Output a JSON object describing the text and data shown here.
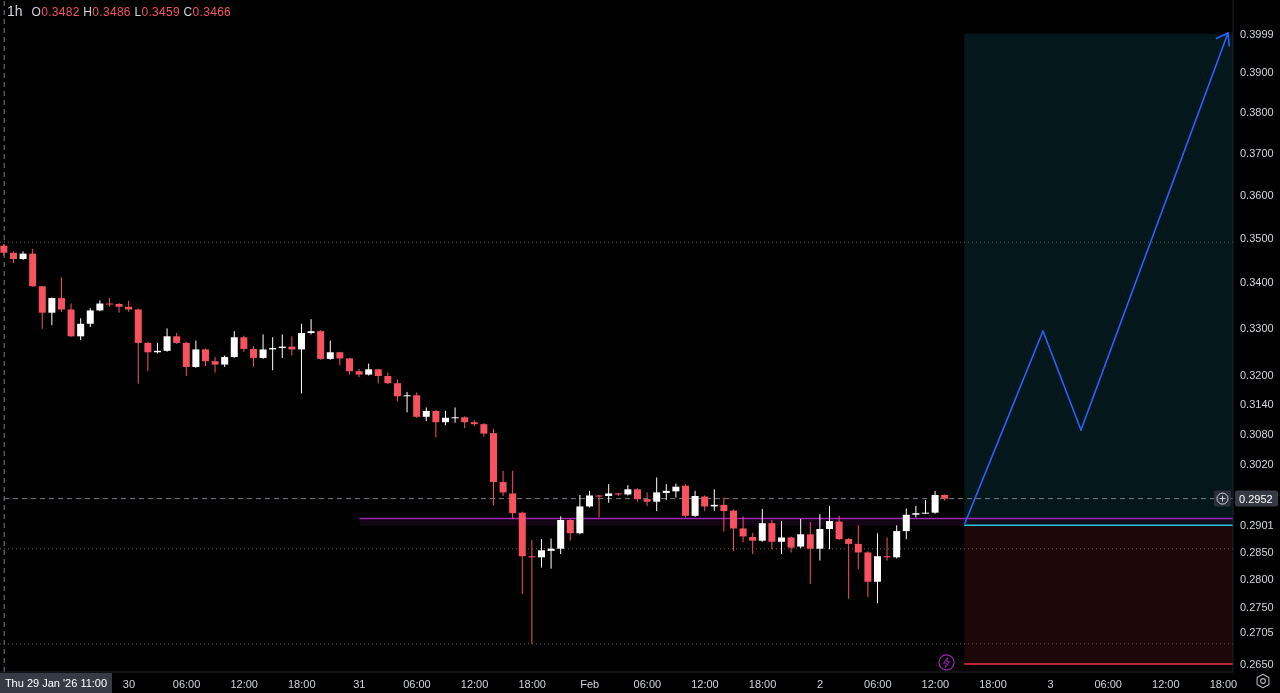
{
  "chart_data": {
    "type": "candlestick",
    "title": "1h",
    "subtitle": "O0.3482 H0.3486 L0.3459 C0.3466",
    "series": [
      {
        "x": [
          "2026-01-29T11:00",
          "2026-01-29T12:00",
          "2026-01-29T13:00",
          "2026-01-29T14:00",
          "2026-01-29T15:00",
          "2026-01-29T16:00",
          "2026-01-29T17:00",
          "2026-01-29T18:00",
          "2026-01-29T19:00",
          "2026-01-29T20:00",
          "2026-01-29T21:00",
          "2026-01-29T22:00",
          "2026-01-29T23:00",
          "2026-01-30T00:00",
          "2026-01-30T01:00",
          "2026-01-30T02:00",
          "2026-01-30T03:00",
          "2026-01-30T04:00",
          "2026-01-30T05:00",
          "2026-01-30T06:00",
          "2026-01-30T07:00",
          "2026-01-30T08:00",
          "2026-01-30T09:00",
          "2026-01-30T10:00",
          "2026-01-30T11:00",
          "2026-01-30T12:00",
          "2026-01-30T13:00",
          "2026-01-30T14:00",
          "2026-01-30T15:00",
          "2026-01-30T16:00",
          "2026-01-30T17:00",
          "2026-01-30T18:00",
          "2026-01-30T19:00",
          "2026-01-30T20:00",
          "2026-01-30T21:00",
          "2026-01-30T22:00",
          "2026-01-30T23:00",
          "2026-01-31T00:00",
          "2026-01-31T01:00",
          "2026-01-31T02:00",
          "2026-01-31T03:00",
          "2026-01-31T04:00",
          "2026-01-31T05:00",
          "2026-01-31T06:00",
          "2026-01-31T07:00",
          "2026-01-31T08:00",
          "2026-01-31T09:00",
          "2026-01-31T10:00",
          "2026-01-31T11:00",
          "2026-01-31T12:00",
          "2026-01-31T13:00",
          "2026-01-31T14:00",
          "2026-01-31T15:00",
          "2026-01-31T16:00",
          "2026-01-31T17:00",
          "2026-01-31T18:00",
          "2026-01-31T19:00",
          "2026-01-31T20:00",
          "2026-01-31T21:00",
          "2026-01-31T22:00",
          "2026-01-31T23:00",
          "2026-02-01T00:00",
          "2026-02-01T01:00",
          "2026-02-01T02:00",
          "2026-02-01T03:00",
          "2026-02-01T04:00",
          "2026-02-01T05:00",
          "2026-02-01T06:00",
          "2026-02-01T07:00",
          "2026-02-01T08:00",
          "2026-02-01T09:00",
          "2026-02-01T10:00",
          "2026-02-01T11:00",
          "2026-02-01T12:00",
          "2026-02-01T13:00",
          "2026-02-01T14:00",
          "2026-02-01T15:00",
          "2026-02-01T16:00",
          "2026-02-01T17:00",
          "2026-02-01T18:00",
          "2026-02-01T19:00",
          "2026-02-01T20:00",
          "2026-02-01T21:00",
          "2026-02-01T22:00",
          "2026-02-01T23:00",
          "2026-02-02T00:00",
          "2026-02-02T01:00",
          "2026-02-02T02:00",
          "2026-02-02T03:00",
          "2026-02-02T04:00",
          "2026-02-02T05:00",
          "2026-02-02T06:00",
          "2026-02-02T07:00",
          "2026-02-02T08:00",
          "2026-02-02T09:00",
          "2026-02-02T10:00",
          "2026-02-02T11:00",
          "2026-02-02T12:00",
          "2026-02-02T13:00"
        ],
        "ohlc": [
          [
            0.3482,
            0.3486,
            0.3459,
            0.3466
          ],
          [
            0.3466,
            0.3469,
            0.3443,
            0.3452
          ],
          [
            0.3452,
            0.3469,
            0.345,
            0.3464
          ],
          [
            0.3464,
            0.3475,
            0.339,
            0.3391
          ],
          [
            0.3391,
            0.3392,
            0.3298,
            0.3333
          ],
          [
            0.3333,
            0.3366,
            0.3306,
            0.3365
          ],
          [
            0.3365,
            0.3411,
            0.3335,
            0.334
          ],
          [
            0.334,
            0.3353,
            0.3281,
            0.3282
          ],
          [
            0.3282,
            0.3321,
            0.3274,
            0.3309
          ],
          [
            0.3309,
            0.3343,
            0.3302,
            0.3338
          ],
          [
            0.3338,
            0.336,
            0.3336,
            0.3353
          ],
          [
            0.3353,
            0.3365,
            0.3346,
            0.3351
          ],
          [
            0.3352,
            0.3354,
            0.3333,
            0.3346
          ],
          [
            0.3346,
            0.3359,
            0.3335,
            0.334
          ],
          [
            0.334,
            0.3342,
            0.3182,
            0.3268
          ],
          [
            0.3268,
            0.327,
            0.3208,
            0.3248
          ],
          [
            0.3248,
            0.3268,
            0.3245,
            0.3251
          ],
          [
            0.3251,
            0.3299,
            0.3249,
            0.3282
          ],
          [
            0.3282,
            0.3289,
            0.3266,
            0.3268
          ],
          [
            0.3268,
            0.327,
            0.3198,
            0.3217
          ],
          [
            0.3217,
            0.3273,
            0.3215,
            0.3254
          ],
          [
            0.3254,
            0.3256,
            0.3219,
            0.3229
          ],
          [
            0.3229,
            0.3238,
            0.3205,
            0.3222
          ],
          [
            0.3222,
            0.3241,
            0.3217,
            0.3238
          ],
          [
            0.3238,
            0.3293,
            0.3236,
            0.328
          ],
          [
            0.328,
            0.3283,
            0.3249,
            0.3255
          ],
          [
            0.3255,
            0.3261,
            0.3217,
            0.3236
          ],
          [
            0.3236,
            0.3286,
            0.3234,
            0.3254
          ],
          [
            0.3254,
            0.328,
            0.321,
            0.3257
          ],
          [
            0.3257,
            0.3286,
            0.3236,
            0.326
          ],
          [
            0.326,
            0.3282,
            0.3241,
            0.3254
          ],
          [
            0.3254,
            0.3309,
            0.3162,
            0.3289
          ],
          [
            0.3289,
            0.3319,
            0.3286,
            0.3293
          ],
          [
            0.3293,
            0.3295,
            0.3232,
            0.3234
          ],
          [
            0.3234,
            0.3273,
            0.3232,
            0.3248
          ],
          [
            0.3248,
            0.3249,
            0.322,
            0.3235
          ],
          [
            0.3235,
            0.3236,
            0.3201,
            0.3208
          ],
          [
            0.3208,
            0.3213,
            0.3196,
            0.3201
          ],
          [
            0.3201,
            0.3224,
            0.3199,
            0.3212
          ],
          [
            0.3212,
            0.3213,
            0.3183,
            0.3198
          ],
          [
            0.3198,
            0.3205,
            0.3181,
            0.3183
          ],
          [
            0.3183,
            0.3191,
            0.3146,
            0.3156
          ],
          [
            0.3156,
            0.3165,
            0.3123,
            0.3158
          ],
          [
            0.3158,
            0.3164,
            0.3112,
            0.3114
          ],
          [
            0.3114,
            0.3133,
            0.3105,
            0.3126
          ],
          [
            0.3126,
            0.3128,
            0.3072,
            0.3103
          ],
          [
            0.3103,
            0.3126,
            0.3097,
            0.3112
          ],
          [
            0.3112,
            0.3133,
            0.3102,
            0.3113
          ],
          [
            0.3113,
            0.3115,
            0.3091,
            0.3103
          ],
          [
            0.3103,
            0.3107,
            0.3095,
            0.3099
          ],
          [
            0.3099,
            0.3101,
            0.3074,
            0.308
          ],
          [
            0.3081,
            0.309,
            0.2939,
            0.2984
          ],
          [
            0.2984,
            0.3006,
            0.2957,
            0.2964
          ],
          [
            0.2962,
            0.3006,
            0.2913,
            0.2924
          ],
          [
            0.2925,
            0.2927,
            0.2774,
            0.2843
          ],
          [
            0.2843,
            0.2873,
            0.2685,
            0.2841
          ],
          [
            0.2841,
            0.2875,
            0.2822,
            0.2854
          ],
          [
            0.2853,
            0.2876,
            0.282,
            0.2857
          ],
          [
            0.2857,
            0.2918,
            0.2847,
            0.2911
          ],
          [
            0.2911,
            0.2913,
            0.2872,
            0.2886
          ],
          [
            0.2886,
            0.2959,
            0.2884,
            0.2937
          ],
          [
            0.2937,
            0.2967,
            0.2935,
            0.2958
          ],
          [
            0.2958,
            0.2959,
            0.2916,
            0.2957
          ],
          [
            0.2957,
            0.298,
            0.2944,
            0.2962
          ],
          [
            0.2962,
            0.2963,
            0.2957,
            0.296
          ],
          [
            0.296,
            0.2978,
            0.2958,
            0.297
          ],
          [
            0.297,
            0.2972,
            0.2946,
            0.2951
          ],
          [
            0.2951,
            0.2964,
            0.2938,
            0.2946
          ],
          [
            0.2946,
            0.2993,
            0.2928,
            0.2964
          ],
          [
            0.2963,
            0.298,
            0.2949,
            0.2967
          ],
          [
            0.2966,
            0.2981,
            0.2954,
            0.2975
          ],
          [
            0.2977,
            0.298,
            0.2916,
            0.2919
          ],
          [
            0.2919,
            0.2967,
            0.2917,
            0.2957
          ],
          [
            0.2956,
            0.2958,
            0.2928,
            0.2937
          ],
          [
            0.2937,
            0.297,
            0.2928,
            0.294
          ],
          [
            0.294,
            0.2954,
            0.2889,
            0.2928
          ],
          [
            0.2929,
            0.2931,
            0.2853,
            0.2895
          ],
          [
            0.2895,
            0.2918,
            0.2869,
            0.288
          ],
          [
            0.2879,
            0.2887,
            0.2847,
            0.2872
          ],
          [
            0.2872,
            0.2932,
            0.287,
            0.2905
          ],
          [
            0.2905,
            0.2911,
            0.2856,
            0.287
          ],
          [
            0.287,
            0.2909,
            0.2847,
            0.2878
          ],
          [
            0.2878,
            0.288,
            0.285,
            0.2859
          ],
          [
            0.2861,
            0.2913,
            0.2858,
            0.2884
          ],
          [
            0.2884,
            0.2907,
            0.2792,
            0.2857
          ],
          [
            0.2857,
            0.2922,
            0.2835,
            0.2894
          ],
          [
            0.2894,
            0.2938,
            0.2856,
            0.2909
          ],
          [
            0.2908,
            0.2919,
            0.2873,
            0.2875
          ],
          [
            0.2875,
            0.2877,
            0.2765,
            0.2866
          ],
          [
            0.2866,
            0.2901,
            0.2819,
            0.285
          ],
          [
            0.285,
            0.2852,
            0.2768,
            0.2796
          ],
          [
            0.2796,
            0.2886,
            0.2757,
            0.2843
          ],
          [
            0.2843,
            0.2878,
            0.2835,
            0.2841
          ],
          [
            0.2841,
            0.2901,
            0.2839,
            0.289
          ],
          [
            0.289,
            0.2933,
            0.2875,
            0.2921
          ],
          [
            0.2921,
            0.2938,
            0.2916,
            0.2924
          ],
          [
            0.2924,
            0.2949,
            0.2922,
            0.2925
          ],
          [
            0.2925,
            0.2967,
            0.2923,
            0.2959
          ],
          [
            0.2959,
            0.296,
            0.2948,
            0.2952
          ]
        ],
        "colors": [
          "#f7525f",
          "#f7525f",
          "#ffffff",
          "#f7525f",
          "#f7525f",
          "#ffffff",
          "#f7525f",
          "#f7525f",
          "#ffffff",
          "#ffffff",
          "#ffffff",
          "#f7525f",
          "#f7525f",
          "#f7525f",
          "#f7525f",
          "#f7525f",
          "#ffffff",
          "#ffffff",
          "#f7525f",
          "#f7525f",
          "#ffffff",
          "#f7525f",
          "#f7525f",
          "#ffffff",
          "#ffffff",
          "#f7525f",
          "#f7525f",
          "#ffffff",
          "#ffffff",
          "#ffffff",
          "#f7525f",
          "#ffffff",
          "#ffffff",
          "#f7525f",
          "#ffffff",
          "#f7525f",
          "#f7525f",
          "#f7525f",
          "#ffffff",
          "#f7525f",
          "#f7525f",
          "#f7525f",
          "#ffffff",
          "#f7525f",
          "#ffffff",
          "#f7525f",
          "#ffffff",
          "#ffffff",
          "#f7525f",
          "#f7525f",
          "#f7525f",
          "#f7525f",
          "#f7525f",
          "#f7525f",
          "#f7525f",
          "#f7525f",
          "#ffffff",
          "#ffffff",
          "#ffffff",
          "#f7525f",
          "#ffffff",
          "#ffffff",
          "#f7525f",
          "#ffffff",
          "#f7525f",
          "#ffffff",
          "#f7525f",
          "#f7525f",
          "#ffffff",
          "#ffffff",
          "#ffffff",
          "#f7525f",
          "#ffffff",
          "#f7525f",
          "#ffffff",
          "#f7525f",
          "#f7525f",
          "#f7525f",
          "#f7525f",
          "#ffffff",
          "#f7525f",
          "#ffffff",
          "#f7525f",
          "#ffffff",
          "#f7525f",
          "#ffffff",
          "#ffffff",
          "#f7525f",
          "#f7525f",
          "#f7525f",
          "#f7525f",
          "#ffffff",
          "#f7525f",
          "#ffffff",
          "#ffffff",
          "#ffffff",
          "#ffffff",
          "#ffffff",
          "#f7525f"
        ]
      },
      {
        "type": "line",
        "x": [
          "2026-02-02T15:00",
          "2026-02-03T19:00"
        ],
        "values": [
          0.2901,
          0.2901
        ],
        "lower": [
          0.2901,
          0.2901
        ],
        "upper": [
          0.3999,
          0.3999
        ],
        "color": "#22c4d8"
      },
      {
        "type": "line",
        "x": [
          "2026-02-02T15:00",
          "2026-02-03T19:00"
        ],
        "values": [
          0.265,
          0.265
        ],
        "lower": [
          0.265,
          0.265
        ],
        "upper": [
          0.2901,
          0.2901
        ],
        "color": "#f23645"
      },
      {
        "type": "line",
        "x": [
          "2026-01-31T00:00",
          "2026-02-03T19:00"
        ],
        "values": [
          0.2914,
          0.2914
        ],
        "lower": [
          0.29,
          0.29
        ],
        "upper": [
          0.2914,
          0.2914
        ],
        "color": "#9c27b0"
      }
    ],
    "marker": "none",
    "xlim": [
      "2026-01-29T10:34",
      "2026-02-03T19:00"
    ],
    "xticks": [
      {
        "value": "2026-01-30T00:00",
        "label": "30"
      },
      {
        "value": "2026-01-30T06:00",
        "label": "06:00"
      },
      {
        "value": "2026-01-30T12:00",
        "label": "12:00"
      },
      {
        "value": "2026-01-30T18:00",
        "label": "18:00"
      },
      {
        "value": "2026-01-31T00:00",
        "label": "31"
      },
      {
        "value": "2026-01-31T06:00",
        "label": "06:00"
      },
      {
        "value": "2026-01-31T12:00",
        "label": "12:00"
      },
      {
        "value": "2026-01-31T18:00",
        "label": "18:00"
      },
      {
        "value": "2026-02-01T00:00",
        "label": "Feb"
      },
      {
        "value": "2026-02-01T06:00",
        "label": "06:00"
      },
      {
        "value": "2026-02-01T12:00",
        "label": "12:00"
      },
      {
        "value": "2026-02-01T18:00",
        "label": "18:00"
      },
      {
        "value": "2026-02-02T00:00",
        "label": "2"
      },
      {
        "value": "2026-02-02T06:00",
        "label": "06:00"
      },
      {
        "value": "2026-02-02T12:00",
        "label": "12:00"
      },
      {
        "value": "2026-02-02T18:00",
        "label": "18:00"
      },
      {
        "value": "2026-02-03T00:00",
        "label": "3"
      },
      {
        "value": "2026-02-03T06:00",
        "label": "06:00"
      },
      {
        "value": "2026-02-03T12:00",
        "label": "12:00"
      },
      {
        "value": "2026-02-03T18:00",
        "label": "18:00"
      }
    ],
    "ylim": [
      0.2636,
      0.4088
    ],
    "yticks": [
      0.3999,
      {
        "value": 0.39,
        "label": "0.3900"
      },
      {
        "value": 0.38,
        "label": "0.3800"
      },
      {
        "value": 0.37,
        "label": "0.3700"
      },
      {
        "value": 0.36,
        "label": "0.3600"
      },
      {
        "value": 0.35,
        "label": "0.3500"
      },
      {
        "value": 0.34,
        "label": "0.3400"
      },
      {
        "value": 0.33,
        "label": "0.3300"
      },
      {
        "value": 0.32,
        "label": "0.3200"
      },
      {
        "value": 0.314,
        "label": "0.3140"
      },
      {
        "value": 0.308,
        "label": "0.3080"
      },
      {
        "value": 0.302,
        "label": "0.3020"
      },
      0.2901,
      {
        "value": 0.285,
        "label": "0.2850"
      },
      {
        "value": 0.28,
        "label": "0.2800"
      },
      {
        "value": 0.275,
        "label": "0.2750"
      },
      0.2705,
      {
        "value": 0.265,
        "label": "0.2650"
      }
    ],
    "log": true,
    "ref_lines": [
      {
        "axis": "x",
        "value": "2026-01-29T11:00",
        "label": "Thu 29 Jan '26 11:00",
        "line_style": "dashed",
        "color": "#787b86"
      },
      {
        "axis": "y",
        "value": 0.2952,
        "label": "0.2952",
        "line_style": "dashed",
        "color": "#787b86"
      },
      {
        "axis": "y",
        "value": 0.349,
        "line_style": "dotted",
        "color": "#5d606b"
      },
      {
        "axis": "y",
        "value": 0.2857,
        "line_style": "dotted",
        "color": "#5d606b"
      },
      {
        "axis": "y",
        "value": 0.2685,
        "line_style": "dotted",
        "color": "#5d606b"
      }
    ]
  }
}
